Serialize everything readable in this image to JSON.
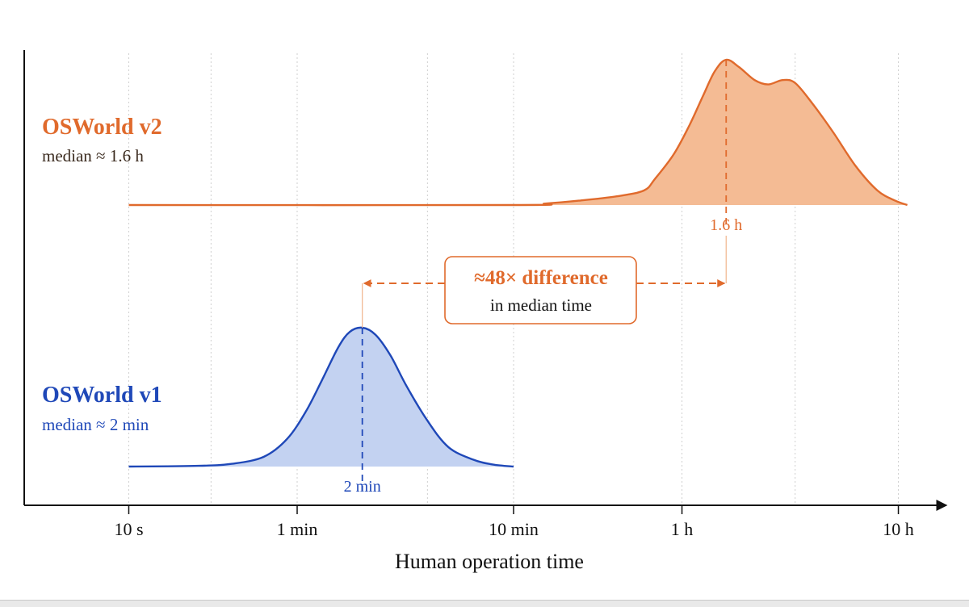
{
  "chart_data": {
    "type": "area",
    "xlabel": "Human operation time",
    "x_scale": "log",
    "x_unit": "minutes",
    "xlim": [
      0.16,
      660
    ],
    "x_ticks": [
      {
        "value": 0.1667,
        "label": "10 s"
      },
      {
        "value": 1,
        "label": "1 min"
      },
      {
        "value": 10,
        "label": "10 min"
      },
      {
        "value": 60,
        "label": "1 h"
      },
      {
        "value": 600,
        "label": "10 h"
      }
    ],
    "minor_gridlines": [
      0.4,
      4,
      200
    ],
    "grid": "vertical dotted",
    "legend": "none (inline labels)",
    "series": [
      {
        "name": "OSWorld v2",
        "subtitle": "median ≈ 1.6 h",
        "median": 96,
        "median_label": "1.6 h",
        "color": "#e06a2c",
        "fill": "#f4bb94",
        "density": [
          [
            0.1667,
            0
          ],
          [
            10,
            0
          ],
          [
            14,
            0.01
          ],
          [
            20,
            0.03
          ],
          [
            30,
            0.06
          ],
          [
            40,
            0.1
          ],
          [
            45,
            0.18
          ],
          [
            55,
            0.35
          ],
          [
            65,
            0.55
          ],
          [
            75,
            0.75
          ],
          [
            85,
            0.92
          ],
          [
            96,
            1.0
          ],
          [
            110,
            0.95
          ],
          [
            130,
            0.86
          ],
          [
            150,
            0.83
          ],
          [
            175,
            0.86
          ],
          [
            200,
            0.84
          ],
          [
            240,
            0.7
          ],
          [
            300,
            0.5
          ],
          [
            380,
            0.27
          ],
          [
            480,
            0.1
          ],
          [
            580,
            0.03
          ],
          [
            660,
            0.0
          ]
        ]
      },
      {
        "name": "OSWorld v1",
        "subtitle": "median ≈ 2 min",
        "median": 2,
        "median_label": "2 min",
        "color": "#1f48b8",
        "fill": "#c3d2f1",
        "density": [
          [
            0.1667,
            0
          ],
          [
            0.35,
            0.005
          ],
          [
            0.5,
            0.02
          ],
          [
            0.7,
            0.07
          ],
          [
            0.9,
            0.2
          ],
          [
            1.1,
            0.4
          ],
          [
            1.3,
            0.62
          ],
          [
            1.55,
            0.86
          ],
          [
            1.75,
            0.97
          ],
          [
            2.0,
            1.0
          ],
          [
            2.3,
            0.95
          ],
          [
            2.7,
            0.8
          ],
          [
            3.2,
            0.58
          ],
          [
            4.0,
            0.33
          ],
          [
            5.0,
            0.14
          ],
          [
            6.5,
            0.05
          ],
          [
            8.0,
            0.015
          ],
          [
            10,
            0
          ]
        ]
      }
    ],
    "annotation": {
      "main": "≈48× difference",
      "sub": "in median time",
      "from": 2,
      "to": 96,
      "color": "#e06a2c"
    }
  }
}
